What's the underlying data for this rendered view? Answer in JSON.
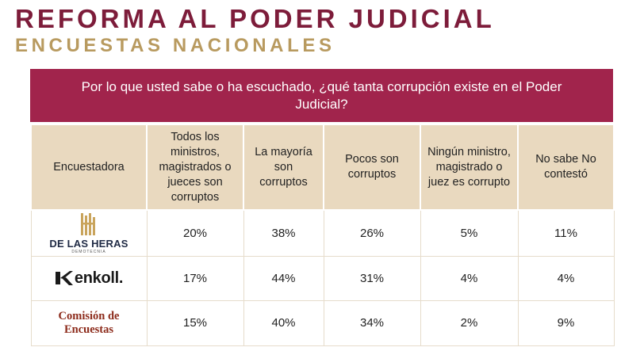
{
  "header": {
    "title": "REFORMA AL PODER JUDICIAL",
    "subtitle": "ENCUESTAS NACIONALES"
  },
  "question": "Por lo que usted sabe o ha escuchado, ¿qué tanta corrupción existe en el Poder Judicial?",
  "table": {
    "headers": [
      "Encuestadora",
      "Todos los ministros, magistrados o jueces son corruptos",
      "La mayoría son corruptos",
      "Pocos son corruptos",
      "Ningún ministro, magistrado o juez es corrupto",
      "No sabe No contestó"
    ],
    "rows": [
      {
        "pollster": "DE LAS HERAS",
        "pollster_sub": "DEMOTECNIA",
        "logo_icon": "de-las-heras-logo-icon",
        "values": [
          "20%",
          "38%",
          "26%",
          "5%",
          "11%"
        ]
      },
      {
        "pollster": "enkoll.",
        "logo_icon": "enkoll-logo-icon",
        "values": [
          "17%",
          "44%",
          "31%",
          "4%",
          "4%"
        ]
      },
      {
        "pollster": "Comisión de Encuestas",
        "values": [
          "15%",
          "40%",
          "34%",
          "2%",
          "9%"
        ]
      }
    ]
  },
  "colors": {
    "title": "#7d1c3a",
    "subtitle": "#b89a5f",
    "question_background": "#a1244c",
    "header_background": "#e9d9bf",
    "heras_gold": "#c9a45c",
    "comision_red": "#8c2a1a"
  }
}
